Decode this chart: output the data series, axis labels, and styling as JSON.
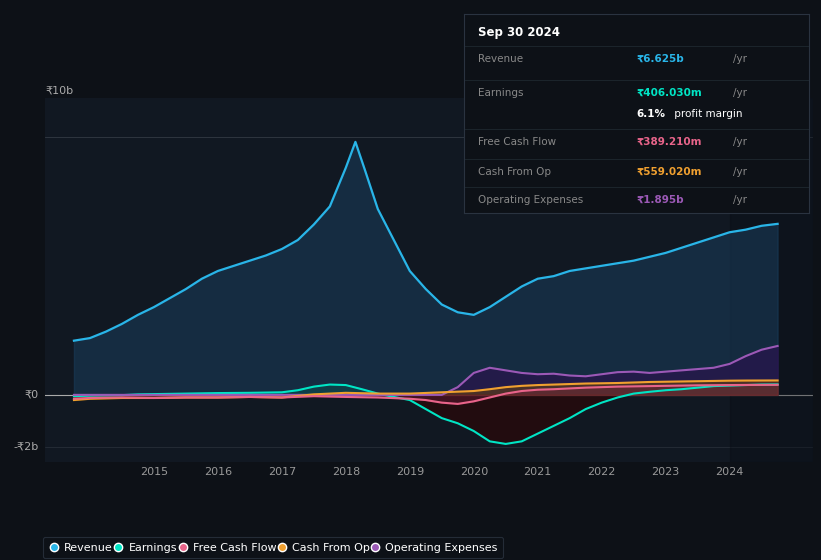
{
  "background_color": "#0d1117",
  "plot_bg_color": "#111822",
  "right_panel_color": "#141d27",
  "title": "Sep 30 2024",
  "ylabel_top": "₹10b",
  "ylabel_zero": "₹0",
  "ylabel_bottom": "-₹2b",
  "x_ticks": [
    2015,
    2016,
    2017,
    2018,
    2019,
    2020,
    2021,
    2022,
    2023,
    2024
  ],
  "xlim": [
    2013.3,
    2025.3
  ],
  "ylim": [
    -2600000000.0,
    11500000000.0
  ],
  "revenue_color": "#29b5e8",
  "earnings_color": "#00e5c5",
  "fcf_color": "#e8648a",
  "cashfromop_color": "#f0a030",
  "opex_color": "#9b59b6",
  "revenue_fill_color": "#1a3d5c",
  "earnings_fill_pos_color": "#0a5050",
  "earnings_fill_neg_color": "#3d1010",
  "opex_fill_color": "#3d1060",
  "info_box_bg": "#0d1117",
  "info_box_border": "#2a3340",
  "revenue_label": "Revenue",
  "earnings_label": "Earnings",
  "fcf_label": "Free Cash Flow",
  "cashfromop_label": "Cash From Op",
  "opex_label": "Operating Expenses",
  "revenue_value": "₹6.625b",
  "earnings_value": "₹406.030m",
  "profit_margin_pct": "6.1%",
  "profit_margin_text": " profit margin",
  "fcf_value": "₹389.210m",
  "cashfromop_value": "₹559.020m",
  "opex_value": "₹1.895b",
  "revenue": {
    "x": [
      2013.75,
      2014.0,
      2014.25,
      2014.5,
      2014.75,
      2015.0,
      2015.25,
      2015.5,
      2015.75,
      2016.0,
      2016.25,
      2016.5,
      2016.75,
      2017.0,
      2017.25,
      2017.5,
      2017.75,
      2018.0,
      2018.15,
      2018.3,
      2018.5,
      2018.75,
      2019.0,
      2019.25,
      2019.5,
      2019.75,
      2020.0,
      2020.25,
      2020.5,
      2020.75,
      2021.0,
      2021.25,
      2021.5,
      2021.75,
      2022.0,
      2022.25,
      2022.5,
      2022.75,
      2023.0,
      2023.25,
      2023.5,
      2023.75,
      2024.0,
      2024.25,
      2024.5,
      2024.75
    ],
    "y": [
      2100000000.0,
      2200000000.0,
      2450000000.0,
      2750000000.0,
      3100000000.0,
      3400000000.0,
      3750000000.0,
      4100000000.0,
      4500000000.0,
      4800000000.0,
      5000000000.0,
      5200000000.0,
      5400000000.0,
      5650000000.0,
      6000000000.0,
      6600000000.0,
      7300000000.0,
      8800000000.0,
      9800000000.0,
      8700000000.0,
      7200000000.0,
      6000000000.0,
      4800000000.0,
      4100000000.0,
      3500000000.0,
      3200000000.0,
      3100000000.0,
      3400000000.0,
      3800000000.0,
      4200000000.0,
      4500000000.0,
      4600000000.0,
      4800000000.0,
      4900000000.0,
      5000000000.0,
      5100000000.0,
      5200000000.0,
      5350000000.0,
      5500000000.0,
      5700000000.0,
      5900000000.0,
      6100000000.0,
      6300000000.0,
      6400000000.0,
      6550000000.0,
      6625000000.0
    ]
  },
  "earnings": {
    "x": [
      2013.75,
      2014.0,
      2014.25,
      2014.5,
      2014.75,
      2015.0,
      2015.25,
      2015.5,
      2015.75,
      2016.0,
      2016.5,
      2017.0,
      2017.25,
      2017.5,
      2017.75,
      2018.0,
      2018.25,
      2018.5,
      2018.75,
      2019.0,
      2019.25,
      2019.5,
      2019.75,
      2020.0,
      2020.25,
      2020.5,
      2020.75,
      2021.0,
      2021.25,
      2021.5,
      2021.75,
      2022.0,
      2022.25,
      2022.5,
      2022.75,
      2023.0,
      2023.25,
      2023.5,
      2023.75,
      2024.0,
      2024.25,
      2024.5,
      2024.75
    ],
    "y": [
      -50000000.0,
      -30000000.0,
      -20000000.0,
      -10000000.0,
      20000000.0,
      30000000.0,
      40000000.0,
      50000000.0,
      60000000.0,
      70000000.0,
      80000000.0,
      100000000.0,
      180000000.0,
      320000000.0,
      400000000.0,
      380000000.0,
      220000000.0,
      50000000.0,
      -80000000.0,
      -200000000.0,
      -550000000.0,
      -900000000.0,
      -1100000000.0,
      -1400000000.0,
      -1800000000.0,
      -1900000000.0,
      -1800000000.0,
      -1500000000.0,
      -1200000000.0,
      -900000000.0,
      -550000000.0,
      -300000000.0,
      -100000000.0,
      50000000.0,
      120000000.0,
      180000000.0,
      220000000.0,
      280000000.0,
      340000000.0,
      360000000.0,
      380000000.0,
      400000000.0,
      406000000.0
    ]
  },
  "fcf": {
    "x": [
      2013.75,
      2014.0,
      2014.5,
      2015.0,
      2015.5,
      2016.0,
      2016.5,
      2017.0,
      2017.5,
      2018.0,
      2018.5,
      2019.0,
      2019.25,
      2019.5,
      2019.75,
      2020.0,
      2020.25,
      2020.5,
      2020.75,
      2021.0,
      2021.25,
      2021.5,
      2021.75,
      2022.0,
      2022.25,
      2022.5,
      2022.75,
      2023.0,
      2023.25,
      2023.5,
      2023.75,
      2024.0,
      2024.25,
      2024.5,
      2024.75
    ],
    "y": [
      -150000000.0,
      -120000000.0,
      -100000000.0,
      -120000000.0,
      -100000000.0,
      -100000000.0,
      -80000000.0,
      -100000000.0,
      -50000000.0,
      -80000000.0,
      -100000000.0,
      -150000000.0,
      -200000000.0,
      -300000000.0,
      -350000000.0,
      -250000000.0,
      -100000000.0,
      50000000.0,
      150000000.0,
      200000000.0,
      220000000.0,
      250000000.0,
      280000000.0,
      300000000.0,
      320000000.0,
      330000000.0,
      340000000.0,
      350000000.0,
      360000000.0,
      370000000.0,
      375000000.0,
      380000000.0,
      385000000.0,
      387000000.0,
      389000000.0
    ]
  },
  "cashfromop": {
    "x": [
      2013.75,
      2014.0,
      2014.5,
      2015.0,
      2015.5,
      2016.0,
      2016.5,
      2017.0,
      2017.5,
      2018.0,
      2018.5,
      2019.0,
      2019.5,
      2020.0,
      2020.25,
      2020.5,
      2020.75,
      2021.0,
      2021.25,
      2021.5,
      2021.75,
      2022.0,
      2022.25,
      2022.5,
      2022.75,
      2023.0,
      2023.25,
      2023.5,
      2023.75,
      2024.0,
      2024.25,
      2024.5,
      2024.75
    ],
    "y": [
      -200000000.0,
      -150000000.0,
      -120000000.0,
      -120000000.0,
      -100000000.0,
      -100000000.0,
      -80000000.0,
      -100000000.0,
      20000000.0,
      80000000.0,
      50000000.0,
      50000000.0,
      100000000.0,
      150000000.0,
      220000000.0,
      300000000.0,
      350000000.0,
      380000000.0,
      400000000.0,
      420000000.0,
      440000000.0,
      450000000.0,
      460000000.0,
      480000000.0,
      500000000.0,
      510000000.0,
      520000000.0,
      530000000.0,
      540000000.0,
      550000000.0,
      555000000.0,
      557000000.0,
      559000000.0
    ]
  },
  "opex": {
    "x": [
      2013.75,
      2014.0,
      2014.5,
      2015.0,
      2015.5,
      2016.0,
      2016.5,
      2017.0,
      2017.5,
      2018.0,
      2018.5,
      2019.0,
      2019.5,
      2019.75,
      2020.0,
      2020.25,
      2020.5,
      2020.75,
      2021.0,
      2021.25,
      2021.5,
      2021.75,
      2022.0,
      2022.25,
      2022.5,
      2022.75,
      2023.0,
      2023.25,
      2023.5,
      2023.75,
      2024.0,
      2024.25,
      2024.5,
      2024.75
    ],
    "y": [
      0.0,
      0.0,
      0.0,
      0.0,
      0.0,
      0.0,
      0.0,
      0.0,
      0.0,
      0.0,
      0.0,
      0.0,
      0.0,
      300000000.0,
      850000000.0,
      1050000000.0,
      950000000.0,
      850000000.0,
      800000000.0,
      820000000.0,
      750000000.0,
      720000000.0,
      800000000.0,
      880000000.0,
      900000000.0,
      850000000.0,
      900000000.0,
      950000000.0,
      1000000000.0,
      1050000000.0,
      1200000000.0,
      1500000000.0,
      1750000000.0,
      1895000000.0
    ]
  }
}
